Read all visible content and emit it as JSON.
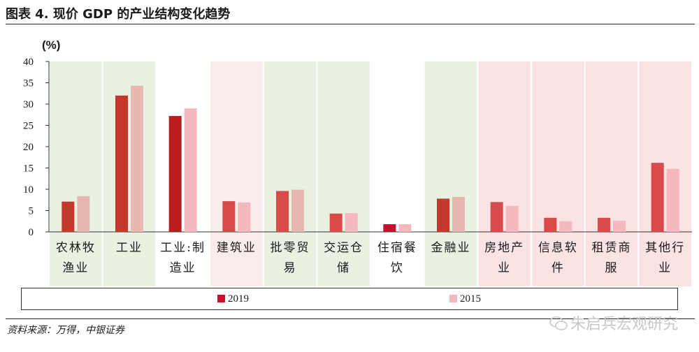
{
  "title": "图表 4. 现价 GDP 的产业结构变化趋势",
  "source": "资料来源：万得，中银证券",
  "watermark": "朱启兵宏观研究",
  "chart_data": {
    "type": "bar",
    "unit_label": "(%)",
    "ylim": [
      0,
      40
    ],
    "yticks": [
      0,
      5,
      10,
      15,
      20,
      25,
      30,
      35,
      40
    ],
    "categories": [
      [
        "农林牧",
        "渔业"
      ],
      [
        "工业"
      ],
      [
        "工业:制",
        "造业"
      ],
      [
        "建筑业"
      ],
      [
        "批零贸",
        "易"
      ],
      [
        "交运仓",
        "储"
      ],
      [
        "住宿餐",
        "饮"
      ],
      [
        "金融业"
      ],
      [
        "房地产",
        "业"
      ],
      [
        "信息软",
        "件"
      ],
      [
        "租赁商",
        "服"
      ],
      [
        "其他行",
        "业"
      ]
    ],
    "background_colors": [
      "#e9f1e3",
      "#e9f1e3",
      "#ffffff",
      "#fbecec",
      "#e9f1e3",
      "#e9f1e3",
      "#ffffff",
      "#e9f1e3",
      "#fbe3e3",
      "#fbe3e3",
      "#fbe3e3",
      "#fbe3e3"
    ],
    "series": [
      {
        "name": "2019",
        "values": [
          7.1,
          32.0,
          27.2,
          7.2,
          9.6,
          4.3,
          1.8,
          7.8,
          7.0,
          3.3,
          3.3,
          16.2
        ],
        "colors": [
          "#c0392b",
          "#c0392b",
          "#b91c1c",
          "#d94a4a",
          "#d94a4a",
          "#d94a4a",
          "#c8102e",
          "#c0392b",
          "#d94a4a",
          "#d94a4a",
          "#d94a4a",
          "#d94a4a"
        ]
      },
      {
        "name": "2015",
        "values": [
          8.4,
          34.3,
          29.0,
          6.9,
          9.9,
          4.4,
          1.8,
          8.2,
          6.1,
          2.5,
          2.6,
          14.8
        ],
        "colors": [
          "#e8b8b0",
          "#e8b8b0",
          "#f5b8bf",
          "#f5b8bf",
          "#e8b8b0",
          "#f5b8bf",
          "#f5b8bf",
          "#e8b8b0",
          "#f5b8bf",
          "#f5b8bf",
          "#f5b8bf",
          "#f5b8bf"
        ]
      }
    ],
    "legend_colors": [
      "#c8102e",
      "#f5b8bf"
    ],
    "legend_position": "bottom"
  }
}
